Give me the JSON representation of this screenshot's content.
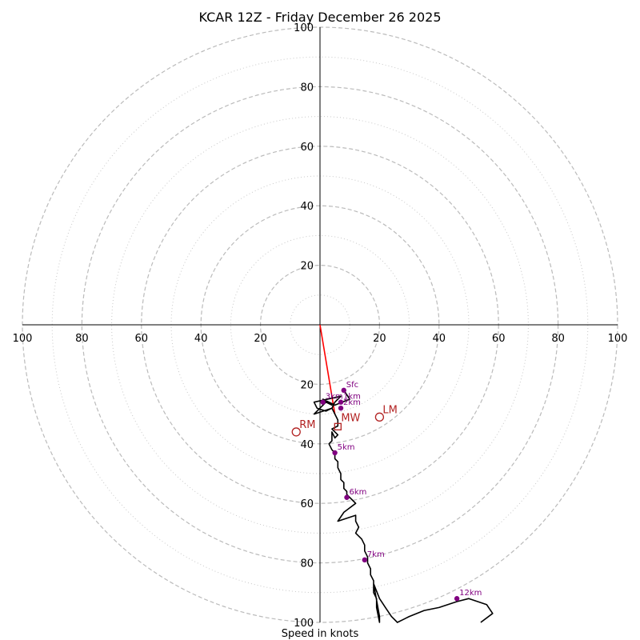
{
  "chart_data": {
    "type": "line",
    "title": "KCAR 12Z - Friday December 26 2025",
    "xlabel": "Speed in knots",
    "ylabel": "",
    "xlim": [
      -100,
      100
    ],
    "ylim": [
      -100,
      100
    ],
    "ring_major": [
      20,
      40,
      60,
      80,
      100
    ],
    "ring_minor": [
      10,
      30,
      50,
      70,
      90
    ],
    "tick_labels": [
      "20",
      "40",
      "60",
      "80",
      "100"
    ],
    "grid": true,
    "colors": {
      "hodograph": "#000000",
      "height_points": "#800080",
      "storm_motion": "#b22222",
      "shear_vector": "#ff0000",
      "rings": "#bbbbbb"
    },
    "hodograph": {
      "u": [
        8,
        10,
        5,
        3,
        1,
        4,
        2,
        0,
        -2,
        4,
        2,
        -1,
        -2,
        7,
        6,
        5,
        4,
        5,
        6,
        6,
        4,
        6,
        5,
        4,
        4,
        3,
        4,
        5,
        5,
        6,
        6,
        7,
        7,
        8,
        8,
        9,
        9,
        10,
        11,
        12,
        8,
        6,
        12,
        12,
        13,
        12,
        14,
        15,
        15,
        16,
        16,
        17,
        17,
        18,
        18,
        18,
        19,
        19,
        20,
        20,
        18,
        20,
        22,
        24,
        26,
        28,
        30,
        35,
        40,
        46,
        50,
        56,
        58,
        54
      ],
      "v": [
        -22,
        -25,
        -27,
        -26,
        -25,
        -27,
        -26,
        -28,
        -30,
        -28,
        -29,
        -28,
        -26,
        -24,
        -25,
        -26,
        -28,
        -30,
        -32,
        -34,
        -35,
        -37,
        -38,
        -36,
        -39,
        -40,
        -42,
        -43,
        -45,
        -46,
        -48,
        -50,
        -52,
        -53,
        -55,
        -56,
        -57,
        -58,
        -59,
        -60,
        -63,
        -66,
        -64,
        -66,
        -68,
        -70,
        -72,
        -74,
        -76,
        -78,
        -80,
        -82,
        -84,
        -86,
        -88,
        -90,
        -92,
        -95,
        -100,
        -98,
        -87,
        -92,
        -95,
        -98,
        -100,
        -99,
        -98,
        -96,
        -95,
        -93,
        -92,
        -94,
        -97,
        -100
      ]
    },
    "height_markers": [
      {
        "label": "Sfc",
        "u": 8,
        "v": -22
      },
      {
        "label": "3km",
        "u": 1,
        "v": -26
      },
      {
        "label": "1km",
        "u": 7,
        "v": -26
      },
      {
        "label": "2km",
        "u": 7,
        "v": -28
      },
      {
        "label": "5km",
        "u": 5,
        "v": -43
      },
      {
        "label": "6km",
        "u": 9,
        "v": -58
      },
      {
        "label": "7km",
        "u": 15,
        "v": -79
      },
      {
        "label": "12km",
        "u": 46,
        "v": -92
      }
    ],
    "storm_motions": [
      {
        "label": "RM",
        "u": -8,
        "v": -36,
        "marker": "circle"
      },
      {
        "label": "LM",
        "u": 20,
        "v": -31,
        "marker": "circle"
      },
      {
        "label": "MW",
        "u": 6,
        "v": -31,
        "marker": "square"
      }
    ],
    "shear_vector": {
      "u0": 0,
      "v0": 0,
      "u1": 5,
      "v1": -30
    }
  }
}
